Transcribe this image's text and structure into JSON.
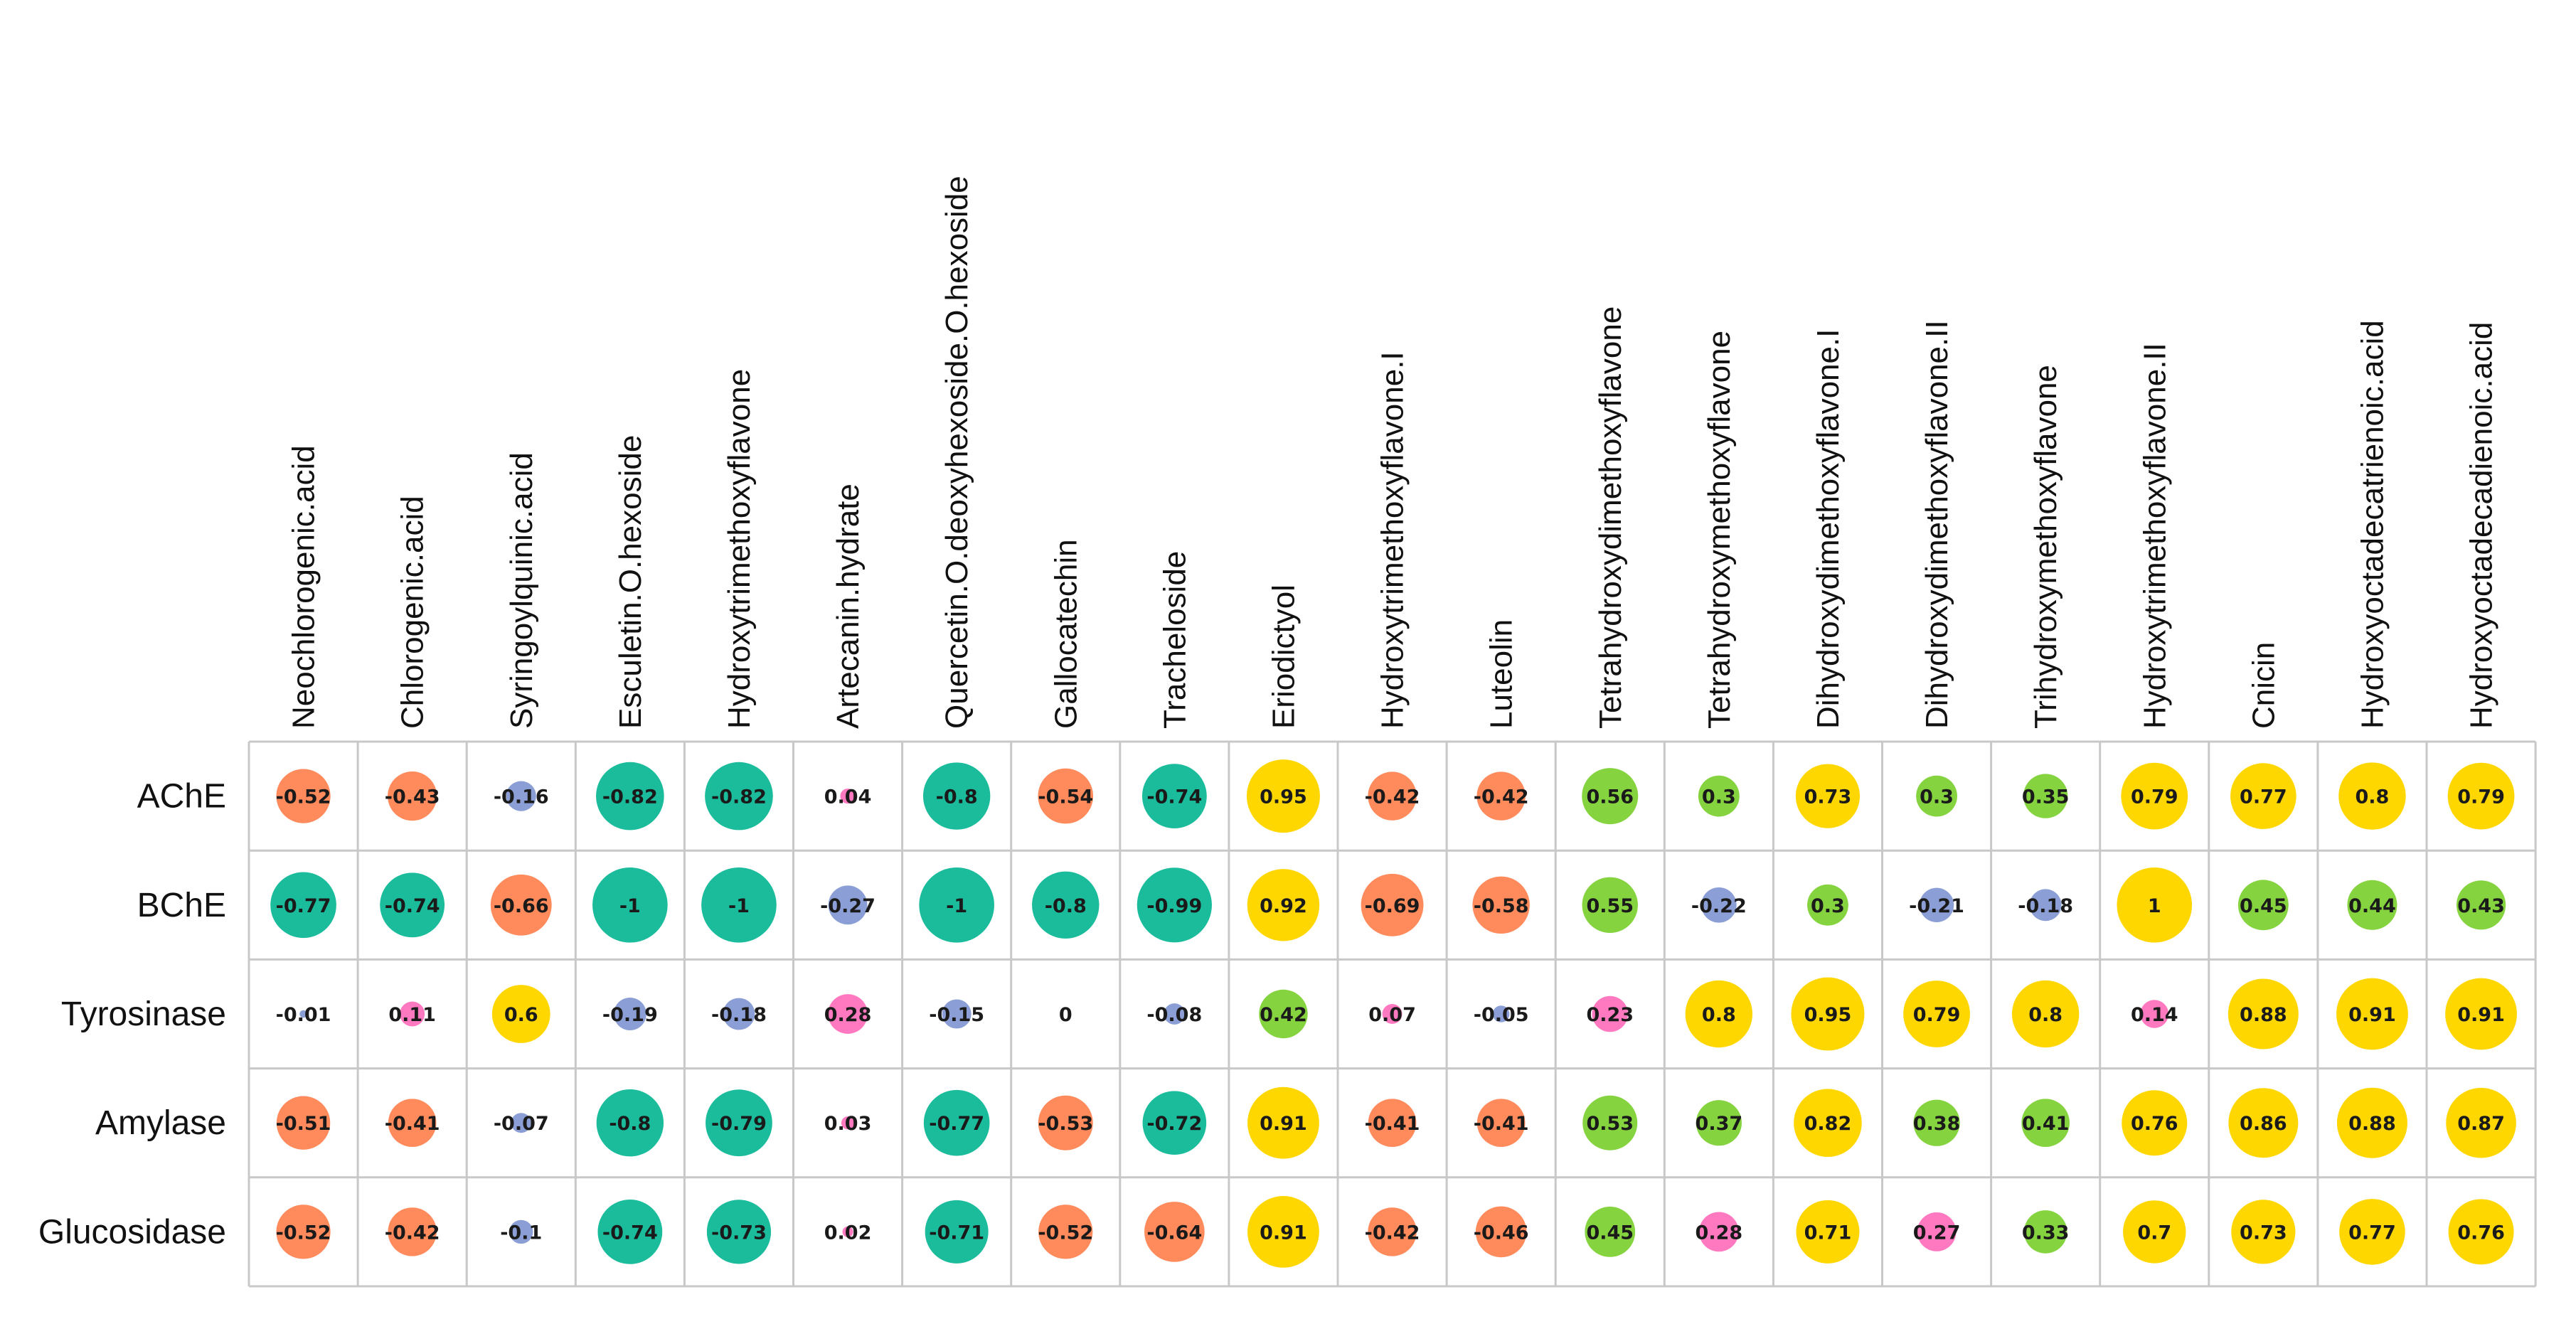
{
  "chart_data": {
    "type": "heatmap",
    "style": "correlation-circles",
    "rows": [
      "AChE",
      "BChE",
      "Tyrosinase",
      "Amylase",
      "Glucosidase"
    ],
    "columns": [
      "Neochlorogenic.acid",
      "Chlorogenic.acid",
      "Syringoylquinic.acid",
      "Esculetin.O.hexoside",
      "Hydroxytrimethoxyflavone",
      "Artecanin.hydrate",
      "Quercetin.O.deoxyhexoside.O.hexoside",
      "Gallocatechin",
      "Tracheloside",
      "Eriodictyol",
      "Hydroxytrimethoxyflavone.I",
      "Luteolin",
      "Tetrahydroxydimethoxyflavone",
      "Tetrahydroxymethoxyflavone",
      "Dihydroxydimethoxyflavone.I",
      "Dihydroxydimethoxyflavone.II",
      "Trihydroxymethoxyflavone",
      "Hydroxytrimethoxyflavone.II",
      "Cnicin",
      "Hydroxyoctadecatrienoic.acid",
      "Hydroxyoctadecadienoic.acid"
    ],
    "values": [
      [
        -0.52,
        -0.43,
        -0.16,
        -0.82,
        -0.82,
        0.04,
        -0.8,
        -0.54,
        -0.74,
        0.95,
        -0.42,
        -0.42,
        0.56,
        0.3,
        0.73,
        0.3,
        0.35,
        0.79,
        0.77,
        0.8,
        0.79
      ],
      [
        -0.77,
        -0.74,
        -0.66,
        -1,
        -1,
        -0.27,
        -1,
        -0.8,
        -0.99,
        0.92,
        -0.69,
        -0.58,
        0.55,
        -0.22,
        0.3,
        -0.21,
        -0.18,
        1,
        0.45,
        0.44,
        0.43
      ],
      [
        -0.01,
        0.11,
        0.6,
        -0.19,
        -0.18,
        0.28,
        -0.15,
        0,
        -0.08,
        0.42,
        0.07,
        -0.05,
        0.23,
        0.8,
        0.95,
        0.79,
        0.8,
        0.14,
        0.88,
        0.91,
        0.91
      ],
      [
        -0.51,
        -0.41,
        -0.07,
        -0.8,
        -0.79,
        0.03,
        -0.77,
        -0.53,
        -0.72,
        0.91,
        -0.41,
        -0.41,
        0.53,
        0.37,
        0.82,
        0.38,
        0.41,
        0.76,
        0.86,
        0.88,
        0.87
      ],
      [
        -0.52,
        -0.42,
        -0.1,
        -0.74,
        -0.73,
        0.02,
        -0.71,
        -0.52,
        -0.64,
        0.91,
        -0.42,
        -0.46,
        0.45,
        0.28,
        0.71,
        0.27,
        0.33,
        0.7,
        0.73,
        0.77,
        0.76
      ]
    ],
    "color_bins": [
      {
        "range": "strong negative",
        "color": "#1abc9c"
      },
      {
        "range": "moderate negative",
        "color": "#ff8a5c"
      },
      {
        "range": "weak negative",
        "color": "#8b9fd6"
      },
      {
        "range": "weak positive",
        "color": "#ff79c1"
      },
      {
        "range": "moderate positive",
        "color": "#84d33f"
      },
      {
        "range": "strong positive",
        "color": "#ffd700"
      }
    ],
    "title": "",
    "xlabel": "",
    "ylabel": "",
    "grid": true,
    "legend": "none"
  }
}
